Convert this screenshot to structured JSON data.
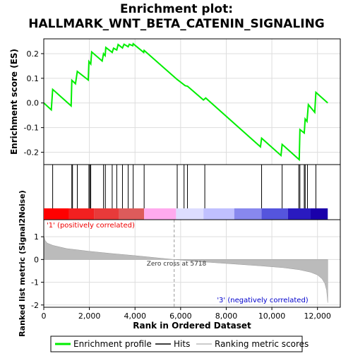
{
  "chart_data": {
    "type": "line",
    "title": "Enrichment plot:",
    "subtitle": "HALLMARK_WNT_BETA_CATENIN_SIGNALING",
    "es_panel": {
      "ylabel": "Enrichment score (ES)",
      "ylim": [
        -0.25,
        0.26
      ],
      "yticks": [
        -0.2,
        -0.1,
        0.0,
        0.1,
        0.2
      ],
      "ytick_labels": [
        "-0.2",
        "-0.1",
        "0.0",
        "0.1",
        "0.2"
      ],
      "grid": true,
      "line_color": "#00ee00",
      "points": [
        [
          0,
          0.0
        ],
        [
          330,
          -0.028
        ],
        [
          390,
          0.055
        ],
        [
          1200,
          -0.012
        ],
        [
          1230,
          0.092
        ],
        [
          1390,
          0.078
        ],
        [
          1470,
          0.128
        ],
        [
          1950,
          0.093
        ],
        [
          1980,
          0.168
        ],
        [
          2060,
          0.158
        ],
        [
          2100,
          0.207
        ],
        [
          2560,
          0.17
        ],
        [
          2620,
          0.2
        ],
        [
          2690,
          0.192
        ],
        [
          2720,
          0.225
        ],
        [
          3000,
          0.205
        ],
        [
          3060,
          0.222
        ],
        [
          3200,
          0.215
        ],
        [
          3260,
          0.237
        ],
        [
          3450,
          0.223
        ],
        [
          3520,
          0.238
        ],
        [
          3700,
          0.228
        ],
        [
          3750,
          0.238
        ],
        [
          3900,
          0.232
        ],
        [
          3920,
          0.24
        ],
        [
          4380,
          0.205
        ],
        [
          4400,
          0.213
        ],
        [
          5850,
          0.095
        ],
        [
          6200,
          0.07
        ],
        [
          6300,
          0.068
        ],
        [
          7000,
          0.012
        ],
        [
          7100,
          0.02
        ],
        [
          9500,
          -0.178
        ],
        [
          9550,
          -0.143
        ],
        [
          10400,
          -0.213
        ],
        [
          10450,
          -0.168
        ],
        [
          11200,
          -0.23
        ],
        [
          11230,
          -0.108
        ],
        [
          11420,
          -0.122
        ],
        [
          11460,
          -0.065
        ],
        [
          11540,
          -0.075
        ],
        [
          11600,
          -0.007
        ],
        [
          11880,
          -0.038
        ],
        [
          11930,
          0.043
        ],
        [
          12450,
          0.0
        ]
      ]
    },
    "hits": [
      390,
      1230,
      1260,
      1470,
      1980,
      2020,
      2060,
      2620,
      2700,
      3000,
      3200,
      3450,
      3700,
      3920,
      4400,
      5850,
      6150,
      6300,
      7060,
      9550,
      10450,
      11180,
      11230,
      11420,
      11460,
      11560,
      11930
    ],
    "heat_bar": {
      "colors": [
        "#ff0000",
        "#f22020",
        "#e83a3a",
        "#dd5b5b",
        "#ffaaee",
        "#ddddff",
        "#c0c0ff",
        "#8888ee",
        "#5555dd",
        "#2a1ac0",
        "#1a00aa"
      ],
      "bounds": [
        0,
        1100,
        2200,
        3300,
        4400,
        5800,
        7000,
        8350,
        9550,
        10700,
        11700,
        12450
      ]
    },
    "rank_panel": {
      "ylabel": "Ranked list metric (Signal2Noise)",
      "xlabel": "Rank in Ordered Dataset",
      "xlim": [
        0,
        13000
      ],
      "xticks": [
        0,
        2000,
        4000,
        6000,
        8000,
        10000,
        12000
      ],
      "xtick_labels": [
        "0",
        "2,000",
        "4,000",
        "6,000",
        "8,000",
        "10,000",
        "12,000"
      ],
      "ylim": [
        -2.1,
        1.75
      ],
      "yticks": [
        -2,
        -1,
        0,
        1
      ],
      "ytick_labels": [
        "-2",
        "-1",
        "0",
        "1"
      ],
      "n_genes": 12450,
      "metric_profile": [
        [
          0,
          1.05
        ],
        [
          50,
          0.85
        ],
        [
          150,
          0.72
        ],
        [
          400,
          0.62
        ],
        [
          1000,
          0.48
        ],
        [
          2000,
          0.36
        ],
        [
          3000,
          0.26
        ],
        [
          4000,
          0.17
        ],
        [
          5000,
          0.07
        ],
        [
          5718,
          0.0
        ],
        [
          6500,
          -0.07
        ],
        [
          7500,
          -0.14
        ],
        [
          8500,
          -0.21
        ],
        [
          9500,
          -0.28
        ],
        [
          10500,
          -0.36
        ],
        [
          11200,
          -0.45
        ],
        [
          11700,
          -0.56
        ],
        [
          12000,
          -0.68
        ],
        [
          12200,
          -0.85
        ],
        [
          12320,
          -1.05
        ],
        [
          12400,
          -1.35
        ],
        [
          12450,
          -1.9
        ]
      ],
      "zero_cross": 5718,
      "zero_cross_label": "Zero cross at 5718",
      "pos_label": "'1' (positively correlated)",
      "neg_label": "'3' (negatively correlated)",
      "pos_color": "#ee0000",
      "neg_color": "#0000cc"
    },
    "legend": {
      "placement": "bottom",
      "entries": [
        {
          "label": "Enrichment profile",
          "color": "#00ee00"
        },
        {
          "label": "Hits",
          "color": "#000000"
        },
        {
          "label": "Ranking metric scores",
          "color": "#bbbbbb"
        }
      ]
    }
  }
}
